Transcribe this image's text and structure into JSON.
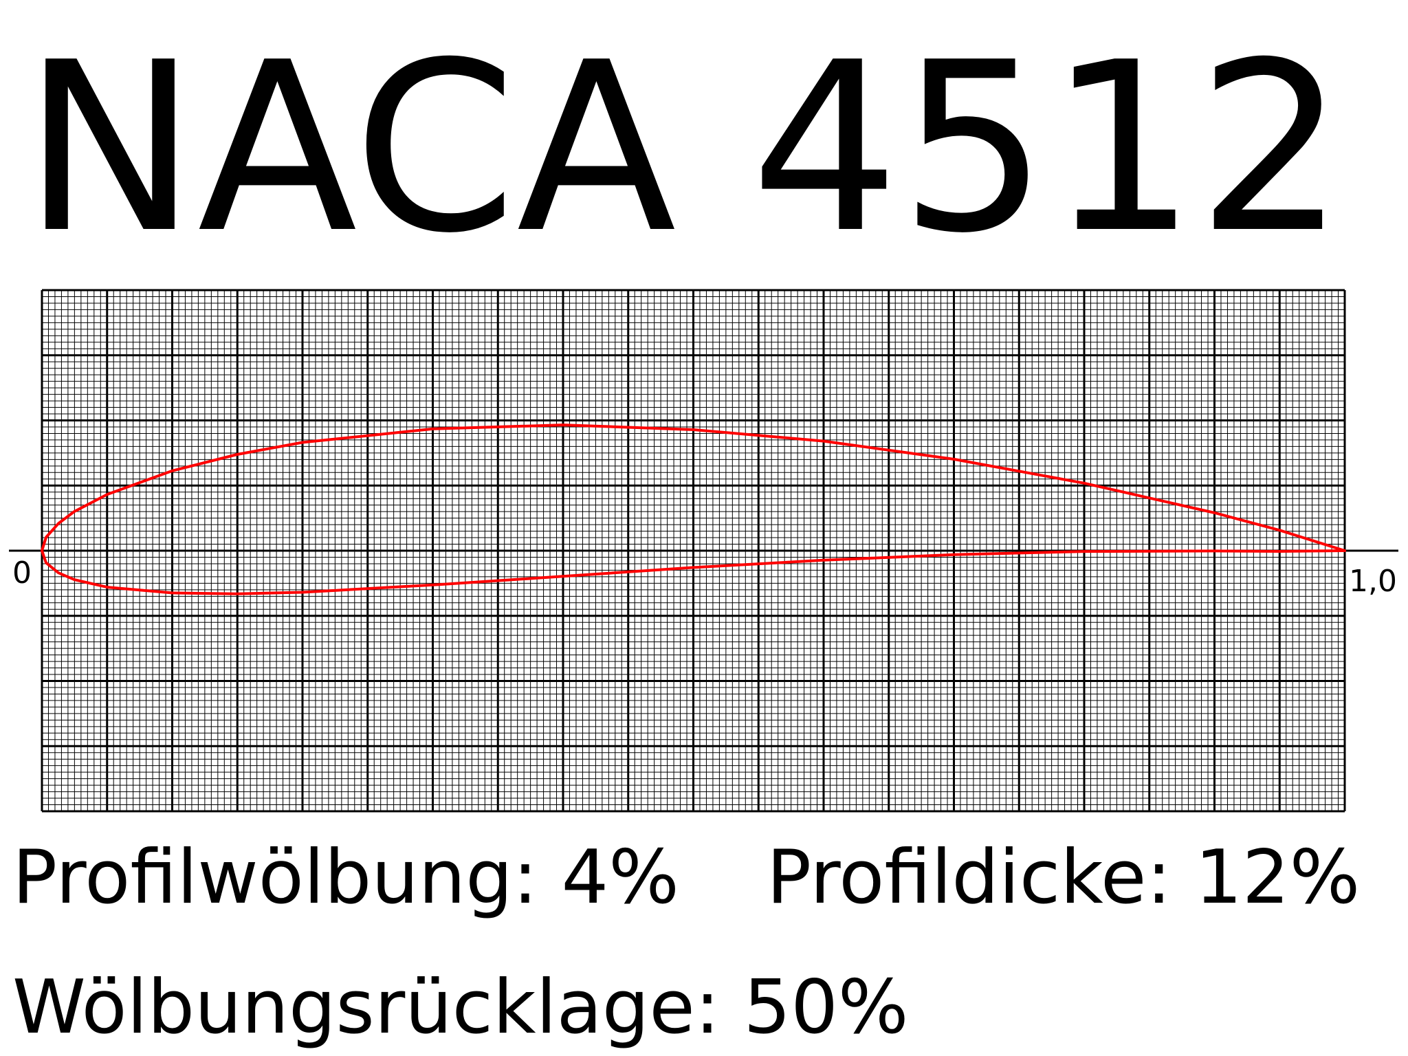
{
  "title": "NACA 4512",
  "axis": {
    "start_label": "0",
    "end_label": "1,0"
  },
  "parameters": [
    {
      "text": "Profilwölbung: 4%"
    },
    {
      "text": "Profildicke: 12%"
    },
    {
      "text": "Wölbungsrücklage: 50%"
    }
  ]
}
